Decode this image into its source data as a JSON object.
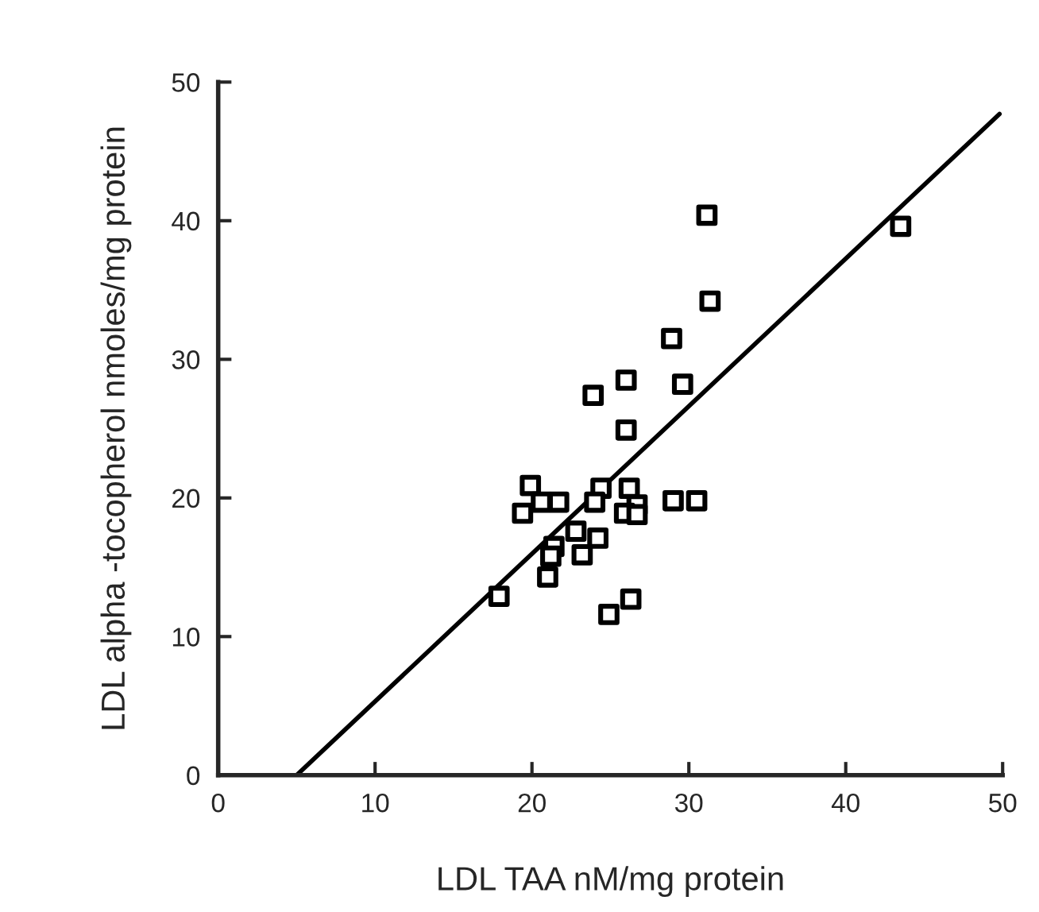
{
  "chart_data": {
    "type": "scatter",
    "xlabel": "LDL TAA nM/mg protein",
    "ylabel": "LDL alpha -tocopherol nmoles/mg protein",
    "xlim": [
      0,
      50
    ],
    "ylim": [
      0,
      50
    ],
    "xticks": [
      0,
      10,
      20,
      30,
      40,
      50
    ],
    "yticks": [
      0,
      10,
      20,
      30,
      40,
      50
    ],
    "grid": false,
    "series": [
      {
        "color": "#000000",
        "marker": "square",
        "x": [
          31.15,
          43.5,
          31.35,
          28.9,
          26.0,
          29.6,
          23.9,
          26.0,
          19.9,
          24.4,
          26.2,
          20.6,
          21.7,
          24.0,
          29.0,
          30.5,
          26.7,
          25.9,
          26.7,
          19.4,
          22.8,
          24.2,
          21.4,
          21.2,
          23.2,
          21.0,
          17.9,
          26.3,
          24.9
        ],
        "values": [
          40.4,
          39.6,
          34.2,
          31.5,
          28.5,
          28.2,
          27.4,
          24.9,
          20.9,
          20.7,
          20.7,
          19.7,
          19.7,
          19.7,
          19.8,
          19.8,
          19.5,
          18.9,
          18.8,
          18.9,
          17.6,
          17.1,
          16.5,
          15.8,
          15.9,
          14.3,
          12.9,
          12.7,
          11.6
        ]
      },
      {
        "type": "line",
        "marker": "none",
        "color": "#000000",
        "x": [
          5.0,
          49.8
        ],
        "values": [
          0,
          47.7
        ]
      }
    ]
  }
}
